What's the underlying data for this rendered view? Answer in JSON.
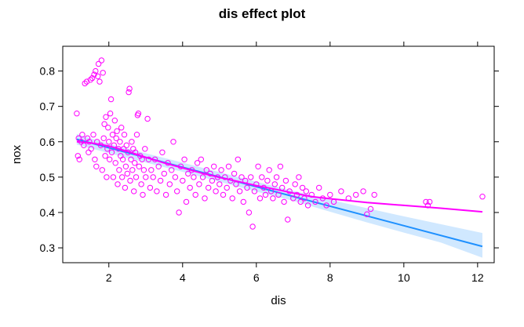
{
  "chart_data": {
    "type": "scatter",
    "title": "dis effect plot",
    "xlabel": "dis",
    "ylabel": "nox",
    "xlim": [
      0.75,
      12.45
    ],
    "ylim": [
      0.258,
      0.87
    ],
    "x_ticks": [
      2,
      4,
      6,
      8,
      10,
      12
    ],
    "y_ticks": [
      0.3,
      0.4,
      0.5,
      0.6,
      0.7,
      0.8
    ],
    "x_tick_labels": [
      "2",
      "4",
      "6",
      "8",
      "10",
      "12"
    ],
    "y_tick_labels": [
      "0.3",
      "0.4",
      "0.5",
      "0.6",
      "0.7",
      "0.8"
    ],
    "grid": false,
    "colors": {
      "points": "#ff00ff",
      "smooth": "#ff00ff",
      "fit": "#1e90ff",
      "band": "#d0e8ff"
    },
    "fit_line": {
      "x": [
        1.13,
        12.13
      ],
      "y": [
        0.607,
        0.304
      ]
    },
    "confidence_band": {
      "x": [
        1.13,
        2.0,
        4.0,
        6.0,
        7.0,
        8.0,
        9.0,
        10.0,
        11.0,
        12.13
      ],
      "upper": [
        0.622,
        0.594,
        0.541,
        0.487,
        0.461,
        0.436,
        0.412,
        0.389,
        0.367,
        0.342
      ],
      "lower": [
        0.592,
        0.568,
        0.515,
        0.459,
        0.433,
        0.402,
        0.372,
        0.343,
        0.315,
        0.272
      ]
    },
    "smooth_line": {
      "x": [
        1.13,
        1.5,
        2.0,
        2.5,
        3.0,
        3.5,
        4.0,
        4.5,
        5.0,
        5.5,
        6.0,
        6.5,
        7.0,
        7.5,
        8.0,
        9.0,
        10.0,
        11.0,
        12.13
      ],
      "y": [
        0.6,
        0.597,
        0.588,
        0.573,
        0.556,
        0.54,
        0.526,
        0.512,
        0.499,
        0.488,
        0.476,
        0.466,
        0.455,
        0.445,
        0.439,
        0.428,
        0.42,
        0.412,
        0.402
      ]
    },
    "points": [
      [
        1.13,
        0.68
      ],
      [
        1.16,
        0.56
      ],
      [
        1.18,
        0.61
      ],
      [
        1.2,
        0.55
      ],
      [
        1.25,
        0.6
      ],
      [
        1.28,
        0.62
      ],
      [
        1.32,
        0.59
      ],
      [
        1.35,
        0.765
      ],
      [
        1.4,
        0.77
      ],
      [
        1.42,
        0.61
      ],
      [
        1.45,
        0.57
      ],
      [
        1.47,
        0.6
      ],
      [
        1.5,
        0.775
      ],
      [
        1.52,
        0.58
      ],
      [
        1.55,
        0.78
      ],
      [
        1.58,
        0.62
      ],
      [
        1.6,
        0.79
      ],
      [
        1.62,
        0.55
      ],
      [
        1.64,
        0.8
      ],
      [
        1.66,
        0.53
      ],
      [
        1.68,
        0.6
      ],
      [
        1.7,
        0.785
      ],
      [
        1.72,
        0.82
      ],
      [
        1.75,
        0.77
      ],
      [
        1.78,
        0.59
      ],
      [
        1.8,
        0.83
      ],
      [
        1.82,
        0.52
      ],
      [
        1.84,
        0.795
      ],
      [
        1.86,
        0.61
      ],
      [
        1.88,
        0.65
      ],
      [
        1.9,
        0.56
      ],
      [
        1.92,
        0.67
      ],
      [
        1.94,
        0.5
      ],
      [
        1.96,
        0.58
      ],
      [
        1.98,
        0.64
      ],
      [
        2.0,
        0.6
      ],
      [
        2.02,
        0.55
      ],
      [
        2.04,
        0.68
      ],
      [
        2.06,
        0.72
      ],
      [
        2.08,
        0.57
      ],
      [
        2.1,
        0.62
      ],
      [
        2.12,
        0.5
      ],
      [
        2.14,
        0.59
      ],
      [
        2.16,
        0.66
      ],
      [
        2.18,
        0.54
      ],
      [
        2.2,
        0.61
      ],
      [
        2.22,
        0.63
      ],
      [
        2.24,
        0.48
      ],
      [
        2.26,
        0.58
      ],
      [
        2.28,
        0.52
      ],
      [
        2.3,
        0.6
      ],
      [
        2.32,
        0.56
      ],
      [
        2.34,
        0.64
      ],
      [
        2.36,
        0.5
      ],
      [
        2.38,
        0.55
      ],
      [
        2.4,
        0.58
      ],
      [
        2.42,
        0.62
      ],
      [
        2.44,
        0.47
      ],
      [
        2.46,
        0.53
      ],
      [
        2.48,
        0.59
      ],
      [
        2.5,
        0.51
      ],
      [
        2.52,
        0.57
      ],
      [
        2.54,
        0.74
      ],
      [
        2.56,
        0.75
      ],
      [
        2.58,
        0.49
      ],
      [
        2.6,
        0.55
      ],
      [
        2.62,
        0.6
      ],
      [
        2.64,
        0.52
      ],
      [
        2.66,
        0.58
      ],
      [
        2.68,
        0.46
      ],
      [
        2.7,
        0.54
      ],
      [
        2.72,
        0.57
      ],
      [
        2.74,
        0.5
      ],
      [
        2.76,
        0.62
      ],
      [
        2.78,
        0.675
      ],
      [
        2.8,
        0.68
      ],
      [
        2.82,
        0.53
      ],
      [
        2.85,
        0.56
      ],
      [
        2.88,
        0.48
      ],
      [
        2.9,
        0.55
      ],
      [
        2.92,
        0.45
      ],
      [
        2.95,
        0.52
      ],
      [
        2.98,
        0.58
      ],
      [
        3.0,
        0.5
      ],
      [
        3.05,
        0.665
      ],
      [
        3.08,
        0.55
      ],
      [
        3.12,
        0.47
      ],
      [
        3.15,
        0.52
      ],
      [
        3.2,
        0.5
      ],
      [
        3.25,
        0.55
      ],
      [
        3.3,
        0.46
      ],
      [
        3.35,
        0.53
      ],
      [
        3.4,
        0.49
      ],
      [
        3.45,
        0.57
      ],
      [
        3.5,
        0.51
      ],
      [
        3.55,
        0.45
      ],
      [
        3.6,
        0.54
      ],
      [
        3.65,
        0.48
      ],
      [
        3.7,
        0.52
      ],
      [
        3.75,
        0.6
      ],
      [
        3.8,
        0.5
      ],
      [
        3.85,
        0.46
      ],
      [
        3.9,
        0.4
      ],
      [
        3.95,
        0.53
      ],
      [
        4.0,
        0.49
      ],
      [
        4.05,
        0.55
      ],
      [
        4.1,
        0.43
      ],
      [
        4.15,
        0.51
      ],
      [
        4.2,
        0.47
      ],
      [
        4.25,
        0.52
      ],
      [
        4.3,
        0.5
      ],
      [
        4.35,
        0.45
      ],
      [
        4.4,
        0.54
      ],
      [
        4.45,
        0.48
      ],
      [
        4.5,
        0.55
      ],
      [
        4.55,
        0.5
      ],
      [
        4.6,
        0.44
      ],
      [
        4.65,
        0.52
      ],
      [
        4.7,
        0.47
      ],
      [
        4.75,
        0.51
      ],
      [
        4.8,
        0.49
      ],
      [
        4.85,
        0.53
      ],
      [
        4.9,
        0.46
      ],
      [
        4.95,
        0.5
      ],
      [
        5.0,
        0.48
      ],
      [
        5.05,
        0.52
      ],
      [
        5.1,
        0.45
      ],
      [
        5.15,
        0.5
      ],
      [
        5.2,
        0.47
      ],
      [
        5.25,
        0.53
      ],
      [
        5.3,
        0.49
      ],
      [
        5.35,
        0.44
      ],
      [
        5.4,
        0.51
      ],
      [
        5.45,
        0.48
      ],
      [
        5.5,
        0.55
      ],
      [
        5.55,
        0.46
      ],
      [
        5.6,
        0.5
      ],
      [
        5.65,
        0.43
      ],
      [
        5.7,
        0.49
      ],
      [
        5.75,
        0.47
      ],
      [
        5.8,
        0.4
      ],
      [
        5.85,
        0.5
      ],
      [
        5.9,
        0.36
      ],
      [
        5.95,
        0.46
      ],
      [
        6.0,
        0.48
      ],
      [
        6.05,
        0.53
      ],
      [
        6.1,
        0.44
      ],
      [
        6.15,
        0.5
      ],
      [
        6.2,
        0.47
      ],
      [
        6.25,
        0.45
      ],
      [
        6.3,
        0.49
      ],
      [
        6.35,
        0.52
      ],
      [
        6.4,
        0.46
      ],
      [
        6.45,
        0.44
      ],
      [
        6.5,
        0.48
      ],
      [
        6.55,
        0.5
      ],
      [
        6.6,
        0.45
      ],
      [
        6.65,
        0.53
      ],
      [
        6.7,
        0.47
      ],
      [
        6.75,
        0.43
      ],
      [
        6.8,
        0.49
      ],
      [
        6.85,
        0.38
      ],
      [
        6.9,
        0.46
      ],
      [
        7.0,
        0.44
      ],
      [
        7.05,
        0.48
      ],
      [
        7.1,
        0.45
      ],
      [
        7.15,
        0.5
      ],
      [
        7.2,
        0.43
      ],
      [
        7.25,
        0.47
      ],
      [
        7.3,
        0.44
      ],
      [
        7.35,
        0.46
      ],
      [
        7.4,
        0.42
      ],
      [
        7.5,
        0.45
      ],
      [
        7.6,
        0.43
      ],
      [
        7.7,
        0.47
      ],
      [
        7.8,
        0.44
      ],
      [
        7.9,
        0.42
      ],
      [
        8.0,
        0.45
      ],
      [
        8.1,
        0.43
      ],
      [
        8.3,
        0.46
      ],
      [
        8.5,
        0.44
      ],
      [
        8.7,
        0.45
      ],
      [
        8.9,
        0.46
      ],
      [
        9.0,
        0.395
      ],
      [
        9.1,
        0.41
      ],
      [
        9.2,
        0.45
      ],
      [
        10.6,
        0.43
      ],
      [
        10.65,
        0.42
      ],
      [
        10.7,
        0.43
      ],
      [
        12.13,
        0.445
      ]
    ]
  }
}
